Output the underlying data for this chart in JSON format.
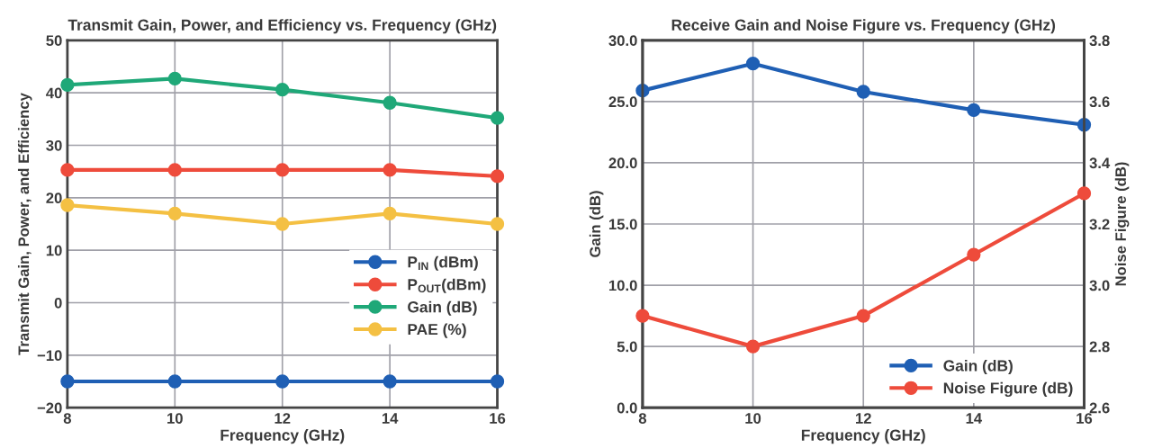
{
  "chart_data": [
    {
      "type": "line",
      "title": "Transmit Gain, Power, and Efficiency vs. Frequency (GHz)",
      "xlabel": "Frequency (GHz)",
      "ylabel": "Transmit Gain, Power, and Efficiency",
      "x": [
        8,
        10,
        12,
        14,
        16
      ],
      "xlim": [
        8,
        16
      ],
      "xticks": [
        8,
        10,
        12,
        14,
        16
      ],
      "ylim": [
        -20,
        50
      ],
      "yticks": [
        {
          "value": -20,
          "label": "−20"
        },
        {
          "value": -10,
          "label": "−10"
        },
        0,
        10,
        20,
        30,
        40,
        50
      ],
      "grid": true,
      "legend": "lower right",
      "marker": "circle",
      "line_style": "solid",
      "series": [
        {
          "name": "P$_{IN}$ (dBm)",
          "color": "#1f5fb4",
          "values": [
            -15,
            -15,
            -15,
            -15,
            -15
          ]
        },
        {
          "name": "P$_{OUT}$(dBm)",
          "color": "#ee4b3b",
          "values": [
            25.3,
            25.3,
            25.3,
            25.3,
            24.1
          ]
        },
        {
          "name": "Gain (dB)",
          "color": "#1fa878",
          "values": [
            41.5,
            42.7,
            40.6,
            38.1,
            35.2
          ]
        },
        {
          "name": "PAE (%)",
          "color": "#f4c043",
          "values": [
            18.6,
            17.0,
            15.0,
            17.0,
            15.0
          ]
        }
      ]
    },
    {
      "type": "line",
      "title": "Receive Gain and Noise Figure vs. Frequency (GHz)",
      "xlabel": "Frequency (GHz)",
      "ylabel": "Gain (dB)",
      "y2label": "Noise Figure (dB)",
      "x": [
        8,
        10,
        12,
        14,
        16
      ],
      "xlim": [
        8,
        16
      ],
      "xticks": [
        8,
        10,
        12,
        14,
        16
      ],
      "ylim": [
        0,
        30
      ],
      "yticks": [
        {
          "value": 0,
          "label": "0.0"
        },
        {
          "value": 5,
          "label": "5.0"
        },
        {
          "value": 10,
          "label": "10.0"
        },
        {
          "value": 15,
          "label": "15.0"
        },
        {
          "value": 20,
          "label": "20.0"
        },
        {
          "value": 25,
          "label": "25.0"
        },
        {
          "value": 30,
          "label": "30.0"
        }
      ],
      "y2lim": [
        2.6,
        3.8
      ],
      "y2ticks": [
        2.6,
        2.8,
        {
          "value": 3.0,
          "label": "3.0"
        },
        3.2,
        3.4,
        3.6,
        3.8
      ],
      "grid": true,
      "legend": "lower right",
      "marker": "circle",
      "line_style": "solid",
      "series": [
        {
          "name": "Gain (dB)",
          "color": "#1f5fb4",
          "values": [
            25.9,
            28.1,
            25.8,
            24.3,
            23.1
          ]
        },
        {
          "name": "Noise Figure (dB)",
          "color": "#ee4b3b",
          "axis": "y2",
          "values": [
            2.9,
            2.8,
            2.9,
            3.1,
            3.3
          ]
        }
      ]
    }
  ]
}
